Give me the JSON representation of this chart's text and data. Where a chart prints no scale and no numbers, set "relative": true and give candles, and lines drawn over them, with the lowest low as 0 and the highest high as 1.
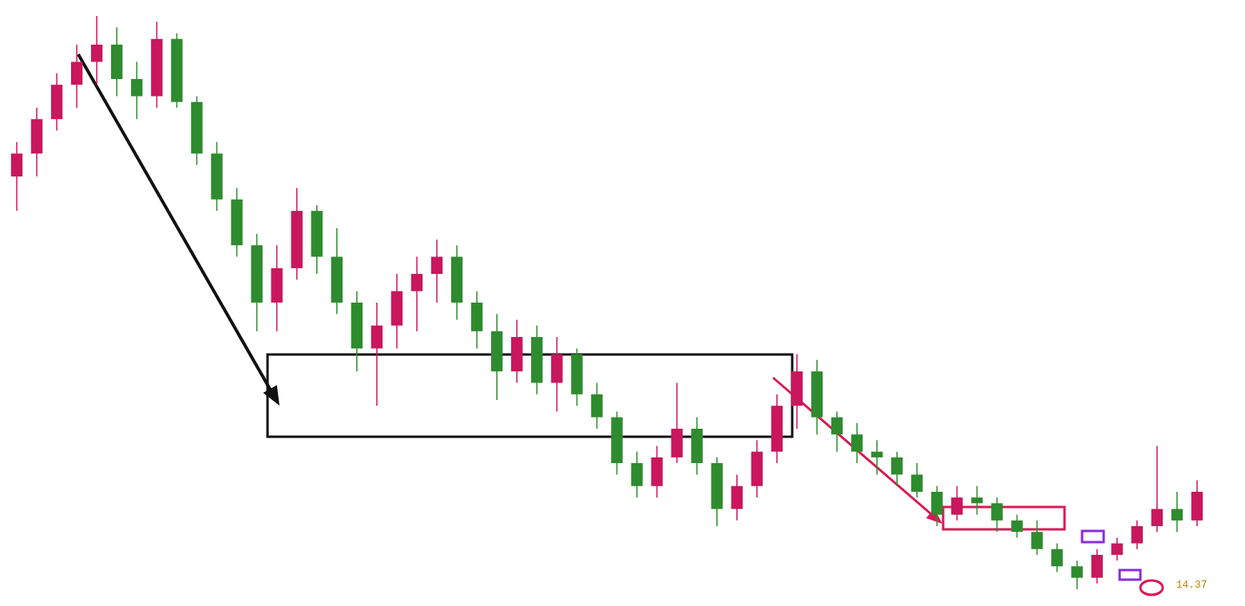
{
  "chart_data": {
    "type": "candlestick",
    "relative": true,
    "categories": [
      null,
      null,
      null,
      null,
      null,
      null,
      null,
      null,
      null,
      null,
      null,
      null,
      null,
      null,
      null,
      null,
      null,
      null,
      null,
      null,
      null,
      null,
      null,
      null,
      null,
      null,
      null,
      null,
      null,
      null,
      null,
      null,
      null,
      null,
      null,
      null,
      null,
      null,
      null,
      null,
      null,
      null,
      null,
      null,
      null,
      null,
      null,
      null,
      null,
      null,
      null,
      null,
      null,
      null,
      null,
      null,
      null,
      null,
      null,
      null
    ],
    "ohlc": [
      [
        0.72,
        0.78,
        0.66,
        0.76
      ],
      [
        0.76,
        0.84,
        0.72,
        0.82
      ],
      [
        0.82,
        0.9,
        0.8,
        0.88
      ],
      [
        0.88,
        0.95,
        0.84,
        0.92
      ],
      [
        0.92,
        1.0,
        0.88,
        0.95
      ],
      [
        0.95,
        0.98,
        0.86,
        0.89
      ],
      [
        0.89,
        0.92,
        0.82,
        0.86
      ],
      [
        0.86,
        0.99,
        0.84,
        0.96
      ],
      [
        0.96,
        0.97,
        0.84,
        0.85
      ],
      [
        0.85,
        0.86,
        0.74,
        0.76
      ],
      [
        0.76,
        0.78,
        0.66,
        0.68
      ],
      [
        0.68,
        0.7,
        0.58,
        0.6
      ],
      [
        0.6,
        0.62,
        0.45,
        0.5
      ],
      [
        0.5,
        0.6,
        0.45,
        0.56
      ],
      [
        0.56,
        0.7,
        0.54,
        0.66
      ],
      [
        0.66,
        0.67,
        0.55,
        0.58
      ],
      [
        0.58,
        0.63,
        0.48,
        0.5
      ],
      [
        0.5,
        0.52,
        0.38,
        0.42
      ],
      [
        0.42,
        0.5,
        0.32,
        0.46
      ],
      [
        0.46,
        0.55,
        0.42,
        0.52
      ],
      [
        0.52,
        0.58,
        0.45,
        0.55
      ],
      [
        0.55,
        0.61,
        0.5,
        0.58
      ],
      [
        0.58,
        0.6,
        0.47,
        0.5
      ],
      [
        0.5,
        0.52,
        0.42,
        0.45
      ],
      [
        0.45,
        0.48,
        0.33,
        0.38
      ],
      [
        0.38,
        0.47,
        0.36,
        0.44
      ],
      [
        0.44,
        0.46,
        0.34,
        0.36
      ],
      [
        0.36,
        0.44,
        0.31,
        0.41
      ],
      [
        0.41,
        0.42,
        0.32,
        0.34
      ],
      [
        0.34,
        0.36,
        0.28,
        0.3
      ],
      [
        0.3,
        0.31,
        0.2,
        0.22
      ],
      [
        0.22,
        0.24,
        0.16,
        0.18
      ],
      [
        0.18,
        0.25,
        0.16,
        0.23
      ],
      [
        0.23,
        0.36,
        0.22,
        0.28
      ],
      [
        0.28,
        0.3,
        0.2,
        0.22
      ],
      [
        0.22,
        0.23,
        0.11,
        0.14
      ],
      [
        0.14,
        0.2,
        0.12,
        0.18
      ],
      [
        0.18,
        0.26,
        0.16,
        0.24
      ],
      [
        0.24,
        0.34,
        0.22,
        0.32
      ],
      [
        0.32,
        0.41,
        0.28,
        0.38
      ],
      [
        0.38,
        0.4,
        0.27,
        0.3
      ],
      [
        0.3,
        0.31,
        0.24,
        0.27
      ],
      [
        0.27,
        0.29,
        0.22,
        0.24
      ],
      [
        0.24,
        0.26,
        0.2,
        0.23
      ],
      [
        0.23,
        0.24,
        0.18,
        0.2
      ],
      [
        0.2,
        0.22,
        0.16,
        0.17
      ],
      [
        0.17,
        0.18,
        0.11,
        0.13
      ],
      [
        0.13,
        0.18,
        0.12,
        0.16
      ],
      [
        0.16,
        0.18,
        0.13,
        0.15
      ],
      [
        0.15,
        0.16,
        0.1,
        0.12
      ],
      [
        0.12,
        0.13,
        0.09,
        0.1
      ],
      [
        0.1,
        0.12,
        0.06,
        0.07
      ],
      [
        0.07,
        0.08,
        0.03,
        0.04
      ],
      [
        0.04,
        0.05,
        0.0,
        0.02
      ],
      [
        0.02,
        0.07,
        0.01,
        0.06
      ],
      [
        0.06,
        0.09,
        0.05,
        0.08
      ],
      [
        0.08,
        0.12,
        0.07,
        0.11
      ],
      [
        0.11,
        0.25,
        0.1,
        0.14
      ],
      [
        0.14,
        0.17,
        0.1,
        0.12
      ],
      [
        0.12,
        0.19,
        0.11,
        0.17
      ]
    ],
    "colors": [
      "#c8175d",
      "#c8175d",
      "#c8175d",
      "#c8175d",
      "#c8175d",
      "#2e8b2e",
      "#2e8b2e",
      "#c8175d",
      "#2e8b2e",
      "#2e8b2e",
      "#2e8b2e",
      "#2e8b2e",
      "#2e8b2e",
      "#c8175d",
      "#c8175d",
      "#2e8b2e",
      "#2e8b2e",
      "#2e8b2e",
      "#c8175d",
      "#c8175d",
      "#c8175d",
      "#c8175d",
      "#2e8b2e",
      "#2e8b2e",
      "#2e8b2e",
      "#c8175d",
      "#2e8b2e",
      "#c8175d",
      "#2e8b2e",
      "#2e8b2e",
      "#2e8b2e",
      "#2e8b2e",
      "#c8175d",
      "#c8175d",
      "#2e8b2e",
      "#2e8b2e",
      "#c8175d",
      "#c8175d",
      "#c8175d",
      "#c8175d",
      "#2e8b2e",
      "#2e8b2e",
      "#2e8b2e",
      "#2e8b2e",
      "#2e8b2e",
      "#2e8b2e",
      "#2e8b2e",
      "#c8175d",
      "#2e8b2e",
      "#2e8b2e",
      "#2e8b2e",
      "#2e8b2e",
      "#2e8b2e",
      "#2e8b2e",
      "#c8175d",
      "#c8175d",
      "#c8175d",
      "#c8175d",
      "#2e8b2e",
      "#c8175d"
    ],
    "annotations": [
      "14.37"
    ]
  }
}
